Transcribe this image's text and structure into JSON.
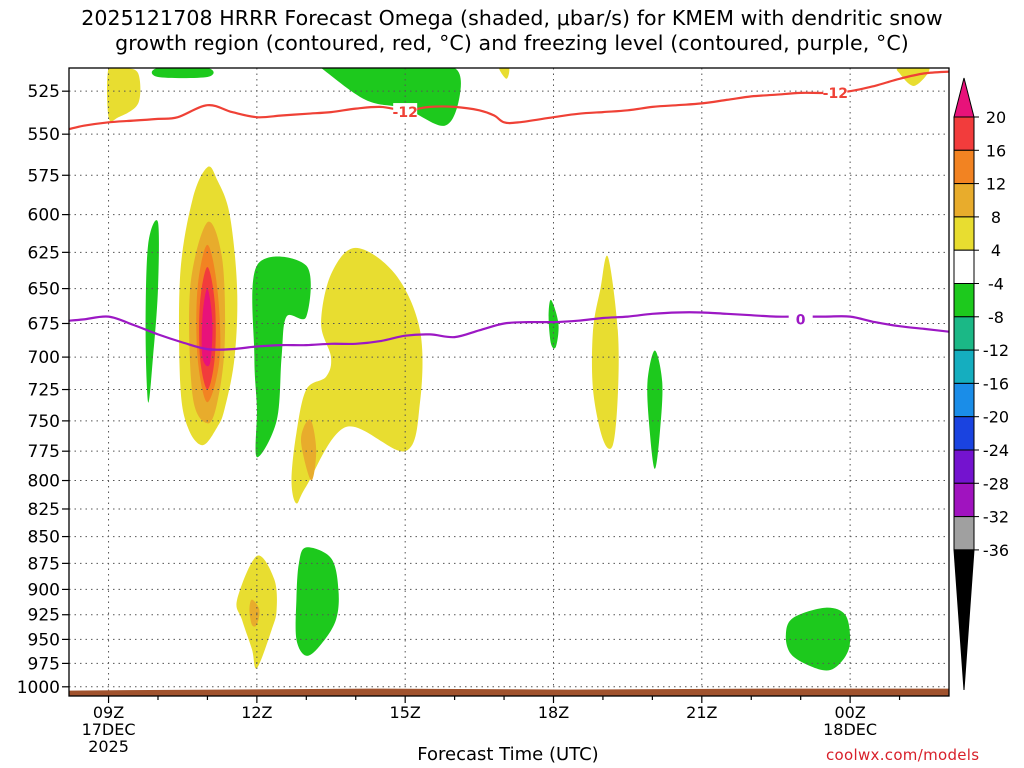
{
  "title_lines": [
    "2025121708 HRRR Forecast Omega (shaded, μbar/s) for KMEM with dendritic snow",
    "growth region (contoured, red, °C) and freezing level (contoured, purple, °C)"
  ],
  "credit": "coolwx.com/models",
  "chart_data": {
    "type": "heatmap",
    "xlabel": "Forecast Time (UTC)",
    "ylabel": "",
    "x_ticks": [
      {
        "hour": 9,
        "lines": [
          "09Z",
          "17DEC",
          "2025"
        ]
      },
      {
        "hour": 12,
        "lines": [
          "12Z"
        ]
      },
      {
        "hour": 15,
        "lines": [
          "15Z"
        ]
      },
      {
        "hour": 18,
        "lines": [
          "18Z"
        ]
      },
      {
        "hour": 21,
        "lines": [
          "21Z"
        ]
      },
      {
        "hour": 24,
        "lines": [
          "00Z",
          "18DEC"
        ]
      }
    ],
    "xlim": [
      8.2,
      26.0
    ],
    "y_ticks": [
      525,
      550,
      575,
      600,
      625,
      650,
      675,
      700,
      725,
      750,
      775,
      800,
      825,
      850,
      875,
      900,
      925,
      950,
      975,
      1000
    ],
    "ylim": [
      512,
      1010
    ],
    "grid": true,
    "colorbar": {
      "levels": [
        20,
        16,
        12,
        8,
        4,
        -4,
        -8,
        -12,
        -16,
        -20,
        -24,
        -28,
        -32,
        -36
      ],
      "colors": [
        "#e8127a",
        "#f23c3c",
        "#f28322",
        "#e8ac2c",
        "#e8dd30",
        "#ffffff",
        "#1dc91d",
        "#1bb886",
        "#15aebf",
        "#1a8de8",
        "#1a43e0",
        "#7413cf",
        "#a013bf",
        "#a0a0a0",
        "#000000"
      ]
    },
    "omega_regions": [
      {
        "level": "4-8",
        "hx": [
          9.0,
          9.3,
          9.6,
          9.6,
          9.2,
          9.0
        ],
        "p": [
          512,
          512,
          515,
          532,
          540,
          540
        ]
      },
      {
        "level": "-8--4",
        "hx": [
          10.0,
          11.0,
          11.0,
          10.0
        ],
        "p": [
          512,
          512,
          517,
          517
        ]
      },
      {
        "level": "-8--4",
        "hx": [
          13.3,
          14.3,
          15.1,
          16.0,
          16.1,
          15.8,
          15.0,
          14.2,
          13.3
        ],
        "p": [
          512,
          512,
          512,
          512,
          528,
          545,
          535,
          530,
          512
        ]
      },
      {
        "level": "4-8",
        "hx": [
          16.9,
          17.1,
          17.05
        ],
        "p": [
          512,
          512,
          518
        ]
      },
      {
        "level": "4-8",
        "hx": [
          25.0,
          25.6,
          25.3,
          25.0
        ],
        "p": [
          512,
          512,
          522,
          515
        ]
      },
      {
        "level": "-8--4",
        "hx": [
          9.8,
          10.0,
          10.0,
          9.9,
          9.8,
          9.75
        ],
        "p": [
          620,
          605,
          650,
          700,
          735,
          680
        ]
      },
      {
        "level": "4-8",
        "hx": [
          11.0,
          11.2,
          11.45,
          11.6,
          11.55,
          11.35,
          11.2,
          10.9,
          10.6,
          10.45,
          10.45,
          10.7
        ],
        "p": [
          570,
          578,
          600,
          650,
          700,
          740,
          755,
          770,
          755,
          720,
          640,
          590
        ]
      },
      {
        "level": "8-12",
        "hx": [
          11.0,
          11.3,
          11.35,
          11.2,
          11.0,
          10.7,
          10.65
        ],
        "p": [
          605,
          630,
          690,
          735,
          752,
          730,
          650
        ]
      },
      {
        "level": "12-16",
        "hx": [
          11.0,
          11.2,
          11.25,
          11.0,
          10.8,
          10.8
        ],
        "p": [
          620,
          650,
          700,
          735,
          700,
          650
        ]
      },
      {
        "level": "16-20",
        "hx": [
          11.0,
          11.15,
          11.15,
          11.0,
          10.85,
          10.85
        ],
        "p": [
          635,
          660,
          700,
          725,
          700,
          660
        ]
      },
      {
        "level": ">20",
        "hx": [
          11.0,
          11.1,
          11.05,
          10.9,
          10.9
        ],
        "p": [
          650,
          675,
          705,
          700,
          670
        ]
      },
      {
        "level": "-8--4",
        "hx": [
          12.0,
          13.0,
          13.0,
          12.6,
          12.5,
          12.4,
          12.0,
          12.0,
          11.95
        ],
        "p": [
          634,
          634,
          670,
          670,
          700,
          750,
          780,
          740,
          700
        ]
      },
      {
        "level": "4-8",
        "hx": [
          14.0,
          14.8,
          15.3,
          15.3,
          15.0,
          13.8,
          13.0,
          12.8,
          12.7,
          12.8,
          13.0,
          13.4,
          13.5,
          13.3,
          13.5
        ],
        "p": [
          622,
          640,
          680,
          735,
          775,
          755,
          805,
          820,
          800,
          760,
          725,
          715,
          700,
          675,
          640
        ]
      },
      {
        "level": "8-12",
        "hx": [
          13.1,
          13.2,
          13.1,
          12.9,
          12.95
        ],
        "p": [
          750,
          775,
          800,
          770,
          755
        ]
      },
      {
        "level": "-8--4",
        "hx": [
          17.95,
          18.1,
          18.05,
          17.95,
          17.9
        ],
        "p": [
          658,
          675,
          692,
          690,
          670
        ]
      },
      {
        "level": "4-8",
        "hx": [
          19.1,
          19.3,
          19.3,
          19.2,
          19.0,
          18.8,
          18.8,
          18.95
        ],
        "p": [
          628,
          680,
          730,
          770,
          765,
          725,
          680,
          650
        ]
      },
      {
        "level": "-8--4",
        "hx": [
          20.05,
          20.2,
          20.15,
          20.05,
          19.95,
          19.9
        ],
        "p": [
          695,
          720,
          760,
          790,
          760,
          720
        ]
      },
      {
        "level": "4-8",
        "hx": [
          12.0,
          12.35,
          12.4,
          12.3,
          12.0,
          11.9,
          11.7,
          11.6
        ],
        "p": [
          868,
          890,
          920,
          940,
          980,
          960,
          930,
          910
        ]
      },
      {
        "level": "8-12",
        "hx": [
          11.9,
          12.05,
          12.0,
          11.9,
          11.85
        ],
        "p": [
          910,
          920,
          935,
          935,
          920
        ]
      },
      {
        "level": "-8--4",
        "hx": [
          13.0,
          13.5,
          13.65,
          13.6,
          13.3,
          13.0,
          12.8,
          12.8,
          12.85
        ],
        "p": [
          860,
          870,
          900,
          930,
          955,
          967,
          950,
          910,
          875
        ]
      },
      {
        "level": "-8--4",
        "hx": [
          23.5,
          23.9,
          24.0,
          23.9,
          23.6,
          23.2,
          22.8,
          22.7,
          22.85
        ],
        "p": [
          918,
          925,
          950,
          968,
          982,
          978,
          965,
          945,
          928
        ]
      }
    ],
    "contours": [
      {
        "label": "-12",
        "color": "#ef4136",
        "hx": [
          8.2,
          8.5,
          9.0,
          9.5,
          10.0,
          10.4,
          11.0,
          11.5,
          12.0,
          12.5,
          13.0,
          13.5,
          14.0,
          14.5,
          15.0,
          15.5,
          16.0,
          16.5,
          16.8,
          17.0,
          17.3,
          18.0,
          18.5,
          19.0,
          19.5,
          20.0,
          20.5,
          21.0,
          21.5,
          22.0,
          22.5,
          23.0,
          23.5,
          24.0,
          24.5,
          25.0,
          25.5,
          26.0
        ],
        "p": [
          547,
          545,
          543,
          542,
          541,
          540,
          533,
          537,
          540,
          539,
          538,
          537,
          535,
          534,
          536,
          534,
          534,
          536,
          539,
          543,
          543,
          540,
          538,
          537,
          536,
          534,
          533,
          532,
          530,
          528,
          527,
          526,
          526,
          525,
          522,
          518,
          515,
          514
        ],
        "labels": [
          {
            "hx": 15.0,
            "p": 537
          },
          {
            "hx": 23.7,
            "p": 526
          }
        ]
      },
      {
        "label": "0",
        "color": "#9c18c4",
        "hx": [
          8.2,
          8.5,
          9.0,
          9.5,
          10.0,
          10.5,
          11.0,
          11.5,
          12.0,
          12.5,
          13.0,
          13.5,
          14.0,
          14.5,
          15.0,
          15.5,
          16.0,
          16.5,
          17.0,
          17.5,
          18.0,
          18.5,
          19.0,
          19.5,
          20.0,
          20.5,
          21.0,
          21.5,
          22.0,
          22.5,
          23.0,
          23.5,
          24.0,
          24.5,
          25.0,
          25.5,
          26.0
        ],
        "p": [
          673,
          672,
          670,
          676,
          683,
          689,
          694,
          694,
          692,
          691,
          691,
          690,
          690,
          688,
          684,
          683,
          685,
          680,
          675,
          674,
          674,
          673,
          671,
          670,
          668,
          667,
          667,
          668,
          669,
          670,
          670,
          670,
          670,
          674,
          677,
          679,
          681
        ],
        "labels": [
          {
            "hx": 23.0,
            "p": 672
          }
        ]
      }
    ],
    "terrain": {
      "color": "#a0522d",
      "p_top": 1003
    }
  }
}
